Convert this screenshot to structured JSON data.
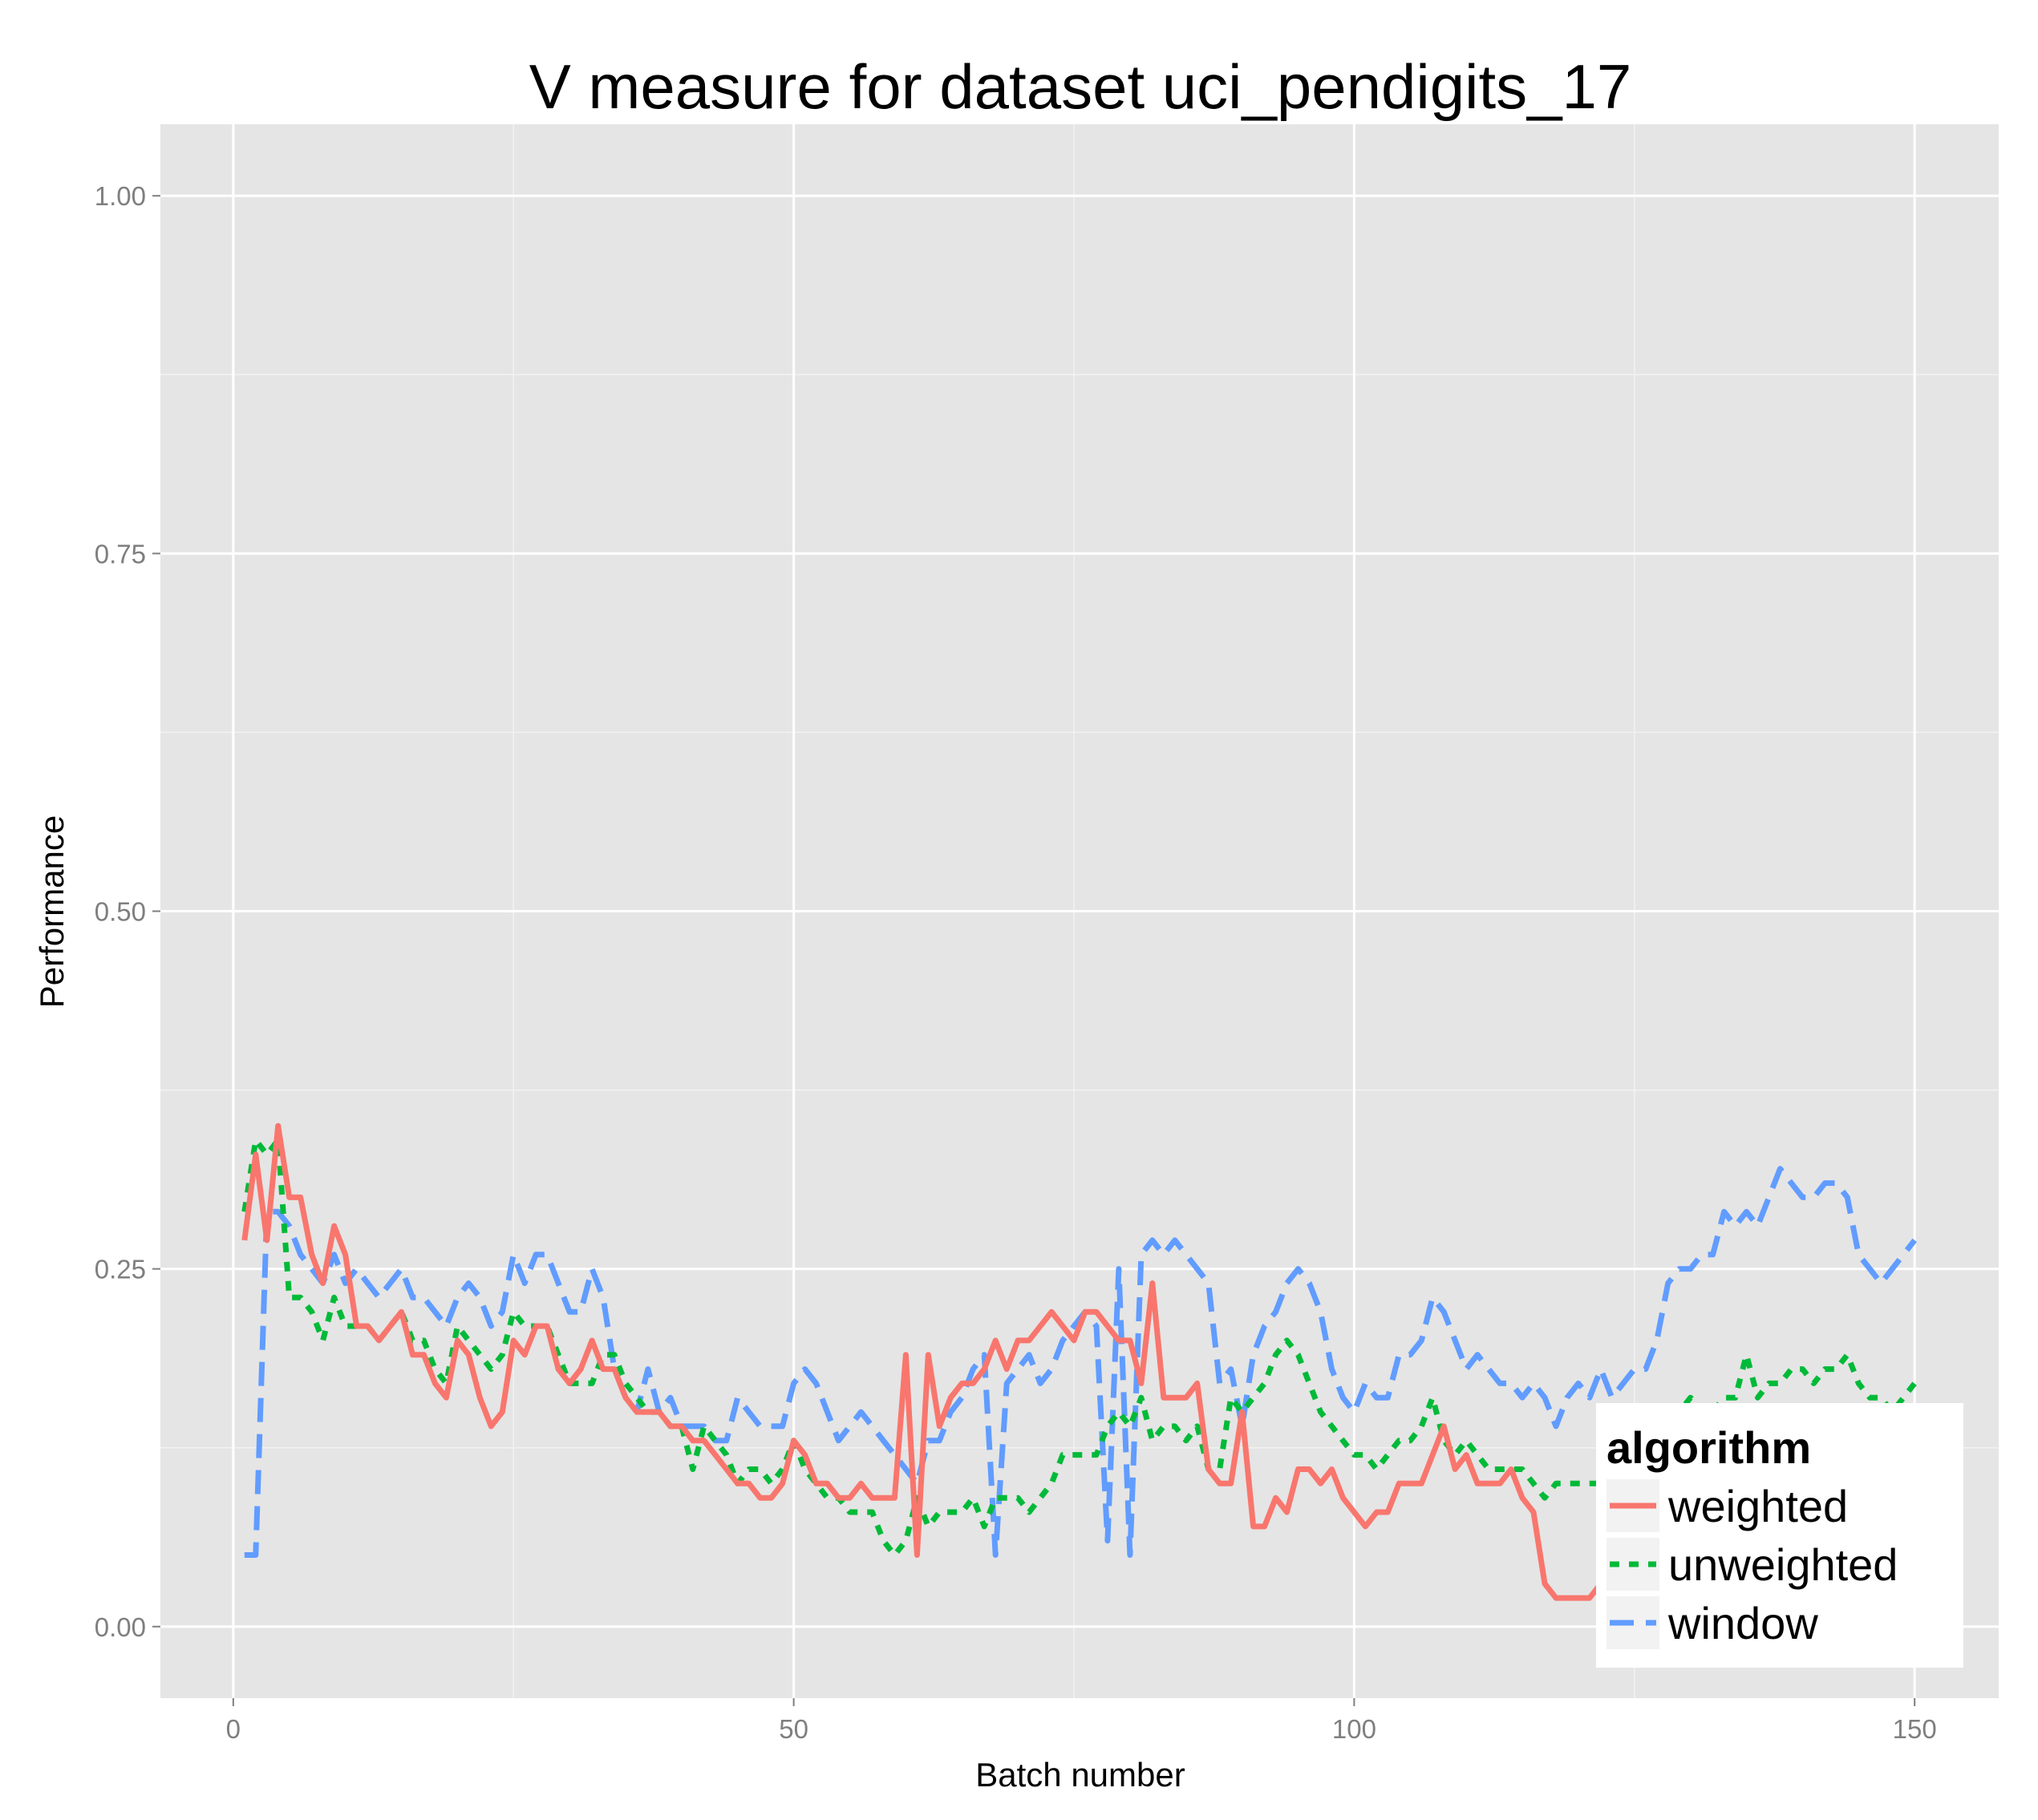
{
  "chart_data": {
    "type": "line",
    "title": "V measure for dataset uci_pendigits_17",
    "xlabel": "Batch number",
    "ylabel": "Performance",
    "xlim": [
      -6.5,
      157.5
    ],
    "ylim": [
      -0.05,
      1.05
    ],
    "x_ticks": [
      0,
      50,
      100,
      150
    ],
    "x_tick_labels": [
      "0",
      "50",
      "100",
      "150"
    ],
    "y_ticks": [
      0,
      0.25,
      0.5,
      0.75,
      1.0
    ],
    "y_tick_labels": [
      "0.00",
      "0.25",
      "0.50",
      "0.75",
      "1.00"
    ],
    "grid": true,
    "legend": {
      "title": "algorithm",
      "position": "bottom-right"
    },
    "x": [
      1,
      2,
      3,
      4,
      5,
      6,
      7,
      8,
      9,
      10,
      11,
      12,
      13,
      14,
      15,
      16,
      17,
      18,
      19,
      20,
      21,
      22,
      23,
      24,
      25,
      26,
      27,
      28,
      29,
      30,
      31,
      32,
      33,
      34,
      35,
      36,
      37,
      38,
      39,
      40,
      41,
      42,
      43,
      44,
      45,
      46,
      47,
      48,
      49,
      50,
      51,
      52,
      53,
      54,
      55,
      56,
      57,
      58,
      59,
      60,
      61,
      62,
      63,
      64,
      65,
      66,
      67,
      68,
      69,
      70,
      71,
      72,
      73,
      74,
      75,
      76,
      77,
      78,
      79,
      80,
      81,
      82,
      83,
      84,
      85,
      86,
      87,
      88,
      89,
      90,
      91,
      92,
      93,
      94,
      95,
      96,
      97,
      98,
      99,
      100,
      101,
      102,
      103,
      104,
      105,
      106,
      107,
      108,
      109,
      110,
      111,
      112,
      113,
      114,
      115,
      116,
      117,
      118,
      119,
      120,
      121,
      122,
      123,
      124,
      125,
      126,
      127,
      128,
      129,
      130,
      131,
      132,
      133,
      134,
      135,
      136,
      137,
      138,
      139,
      140,
      141,
      142,
      143,
      144,
      145,
      146,
      147,
      148,
      149,
      150
    ],
    "series": [
      {
        "name": "weighted",
        "color": "#F8766D",
        "dash": "solid",
        "values": [
          0.27,
          0.33,
          0.27,
          0.35,
          0.3,
          0.3,
          0.26,
          0.24,
          0.28,
          0.26,
          0.21,
          0.21,
          0.2,
          0.21,
          0.22,
          0.19,
          0.19,
          0.17,
          0.16,
          0.2,
          0.19,
          0.16,
          0.14,
          0.15,
          0.2,
          0.19,
          0.21,
          0.21,
          0.18,
          0.17,
          0.18,
          0.2,
          0.18,
          0.18,
          0.16,
          0.15,
          0.15,
          0.15,
          0.14,
          0.14,
          0.13,
          0.13,
          0.12,
          0.11,
          0.1,
          0.1,
          0.09,
          0.09,
          0.1,
          0.13,
          0.12,
          0.1,
          0.1,
          0.09,
          0.09,
          0.1,
          0.09,
          0.09,
          0.09,
          0.19,
          0.05,
          0.19,
          0.14,
          0.16,
          0.17,
          0.17,
          0.18,
          0.2,
          0.18,
          0.2,
          0.2,
          0.21,
          0.22,
          0.21,
          0.2,
          0.22,
          0.22,
          0.21,
          0.2,
          0.2,
          0.17,
          0.24,
          0.16,
          0.16,
          0.16,
          0.17,
          0.11,
          0.1,
          0.1,
          0.15,
          0.07,
          0.07,
          0.09,
          0.08,
          0.11,
          0.11,
          0.1,
          0.11,
          0.09,
          0.08,
          0.07,
          0.08,
          0.08,
          0.1,
          0.1,
          0.1,
          0.12,
          0.14,
          0.11,
          0.12,
          0.1,
          0.1,
          0.1,
          0.11,
          0.09,
          0.08,
          0.03,
          0.02,
          0.02,
          0.02,
          0.02,
          0.03,
          0.04,
          0.05,
          0.06,
          0.07,
          0.07,
          0.08,
          0.08,
          0.08,
          0.08,
          0.08,
          0.09,
          0.09,
          0.09,
          0.1,
          0.1,
          0.1,
          0.1,
          0.11,
          0.11,
          0.11,
          0.11,
          0.12,
          0.12,
          0.12,
          0.13,
          0.13,
          0.13,
          0.13
        ]
      },
      {
        "name": "unweighted",
        "color": "#00BA38",
        "dash": "dotted",
        "values": [
          0.29,
          0.34,
          0.33,
          0.34,
          0.23,
          0.23,
          0.22,
          0.2,
          0.23,
          0.21,
          0.21,
          0.21,
          0.2,
          0.21,
          0.22,
          0.2,
          0.2,
          0.18,
          0.17,
          0.21,
          0.2,
          0.19,
          0.18,
          0.19,
          0.22,
          0.21,
          0.21,
          0.21,
          0.19,
          0.17,
          0.17,
          0.17,
          0.19,
          0.19,
          0.17,
          0.16,
          0.15,
          0.15,
          0.14,
          0.14,
          0.11,
          0.14,
          0.13,
          0.12,
          0.1,
          0.11,
          0.11,
          0.1,
          0.11,
          0.13,
          0.11,
          0.1,
          0.09,
          0.09,
          0.08,
          0.08,
          0.08,
          0.06,
          0.05,
          0.06,
          0.09,
          0.07,
          0.08,
          0.08,
          0.08,
          0.09,
          0.07,
          0.09,
          0.09,
          0.09,
          0.08,
          0.09,
          0.1,
          0.12,
          0.12,
          0.12,
          0.12,
          0.14,
          0.15,
          0.14,
          0.16,
          0.13,
          0.14,
          0.14,
          0.13,
          0.14,
          0.11,
          0.11,
          0.16,
          0.15,
          0.16,
          0.17,
          0.19,
          0.2,
          0.19,
          0.17,
          0.15,
          0.14,
          0.13,
          0.12,
          0.12,
          0.11,
          0.12,
          0.13,
          0.13,
          0.14,
          0.16,
          0.13,
          0.12,
          0.13,
          0.12,
          0.11,
          0.11,
          0.11,
          0.11,
          0.1,
          0.09,
          0.1,
          0.1,
          0.1,
          0.1,
          0.1,
          0.11,
          0.12,
          0.12,
          0.13,
          0.13,
          0.14,
          0.15,
          0.16,
          0.15,
          0.15,
          0.16,
          0.16,
          0.19,
          0.16,
          0.17,
          0.17,
          0.18,
          0.18,
          0.17,
          0.18,
          0.18,
          0.19,
          0.17,
          0.16,
          0.16,
          0.15,
          0.16,
          0.17
        ]
      },
      {
        "name": "window",
        "color": "#619CFF",
        "dash": "dashed",
        "values": [
          0.05,
          0.05,
          0.29,
          0.29,
          0.28,
          0.26,
          0.25,
          0.24,
          0.26,
          0.24,
          0.25,
          0.24,
          0.23,
          0.24,
          0.25,
          0.23,
          0.23,
          0.22,
          0.21,
          0.23,
          0.24,
          0.23,
          0.21,
          0.22,
          0.26,
          0.24,
          0.26,
          0.26,
          0.24,
          0.22,
          0.22,
          0.25,
          0.23,
          0.18,
          0.16,
          0.15,
          0.18,
          0.15,
          0.16,
          0.14,
          0.14,
          0.14,
          0.13,
          0.13,
          0.16,
          0.15,
          0.14,
          0.14,
          0.14,
          0.17,
          0.18,
          0.17,
          0.15,
          0.13,
          0.14,
          0.15,
          0.14,
          0.13,
          0.12,
          0.11,
          0.1,
          0.13,
          0.13,
          0.15,
          0.16,
          0.18,
          0.19,
          0.05,
          0.17,
          0.18,
          0.19,
          0.17,
          0.18,
          0.2,
          0.21,
          0.22,
          0.21,
          0.06,
          0.25,
          0.05,
          0.26,
          0.27,
          0.26,
          0.27,
          0.26,
          0.25,
          0.24,
          0.17,
          0.18,
          0.14,
          0.19,
          0.21,
          0.22,
          0.24,
          0.25,
          0.24,
          0.22,
          0.18,
          0.16,
          0.15,
          0.17,
          0.16,
          0.16,
          0.19,
          0.19,
          0.2,
          0.23,
          0.22,
          0.2,
          0.18,
          0.19,
          0.18,
          0.17,
          0.17,
          0.16,
          0.17,
          0.16,
          0.14,
          0.16,
          0.17,
          0.16,
          0.18,
          0.16,
          0.17,
          0.18,
          0.18,
          0.2,
          0.24,
          0.25,
          0.25,
          0.26,
          0.26,
          0.29,
          0.28,
          0.29,
          0.28,
          0.3,
          0.32,
          0.31,
          0.3,
          0.3,
          0.31,
          0.31,
          0.3,
          0.26,
          0.25,
          0.24,
          0.25,
          0.26,
          0.27
        ]
      }
    ]
  }
}
